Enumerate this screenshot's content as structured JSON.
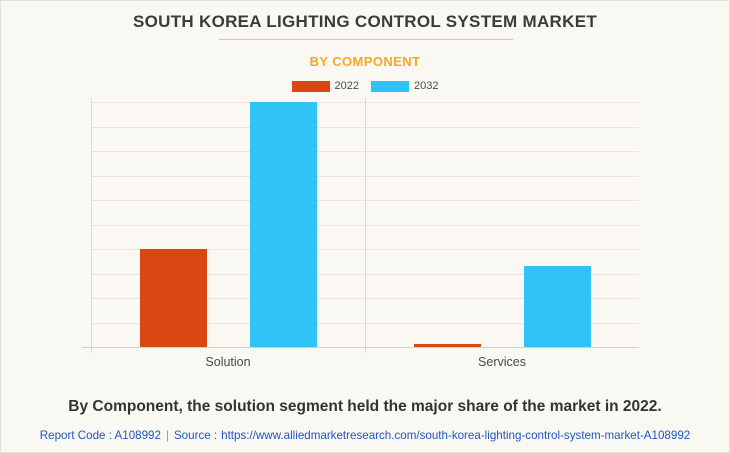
{
  "header": {
    "title": "SOUTH KOREA LIGHTING CONTROL SYSTEM MARKET",
    "subtitle": "BY COMPONENT"
  },
  "legend": [
    {
      "label": "2022",
      "color": "#da4715"
    },
    {
      "label": "2032",
      "color": "#30c3f8"
    }
  ],
  "chart_data": {
    "type": "bar",
    "title": "SOUTH KOREA LIGHTING CONTROL SYSTEM MARKET",
    "subtitle": "BY COMPONENT",
    "categories": [
      "Solution",
      "Services"
    ],
    "series": [
      {
        "name": "2022",
        "color": "#da4715",
        "values": [
          40,
          1.2
        ]
      },
      {
        "name": "2032",
        "color": "#30c3f8",
        "values": [
          100,
          33
        ]
      }
    ],
    "xlabel": "",
    "ylabel": "",
    "ylim": [
      0,
      100
    ],
    "y_axis_labels_visible": false,
    "grid": true,
    "gridline_intervals": 10,
    "legend_position": "top",
    "note": "No numeric axis labels shown; values are relative bar heights as % of tallest bar (Solution 2032 = 100)."
  },
  "summary": {
    "text": "By Component, the solution segment held the major share of the market in 2022."
  },
  "footer": {
    "report_code": "Report Code : A108992",
    "separator": "|",
    "source_prefix": "Source :",
    "source_url": "https://www.alliedmarketresearch.com/south-korea-lighting-control-system-market-A108992"
  },
  "colors": {
    "background": "#faf8f2",
    "title_text": "#3b3b3b",
    "subtitle_accent": "#f6a821",
    "series_2022": "#da4715",
    "series_2032": "#30c3f8",
    "gridline": "#e9e6e0",
    "footer_link": "#2056c4"
  }
}
